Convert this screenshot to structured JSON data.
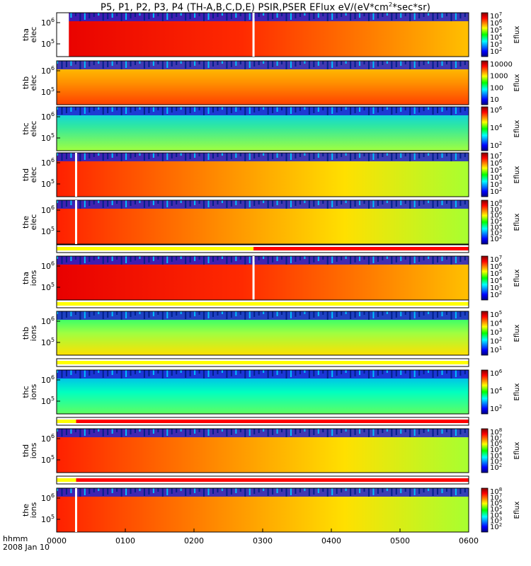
{
  "chart_data": {
    "type": "heatmap",
    "title": "P5, P1, P2, P3, P4 (TH-A,B,C,D,E) PSIR,PSER EFlux eV/(eV*cm",
    "title_sup": "2",
    "title_end": "*sec*sr)",
    "x_tick_labels": [
      "0000",
      "0100",
      "0200",
      "0300",
      "0400",
      "0500",
      "0600"
    ],
    "x_tick_values": [
      0,
      60,
      120,
      180,
      240,
      300,
      360
    ],
    "x_range_minutes": [
      0,
      360
    ],
    "x_axis_title": "hhmm",
    "date_label": "2008 Jan 10",
    "colorbar_label": "Eflux",
    "panels": [
      {
        "probe": "tha",
        "species": "elec",
        "y_ticks": [
          "10",
          "10"
        ],
        "y_exps": [
          "6",
          "5"
        ],
        "cb_ticks": [
          {
            "b": "10",
            "e": "7"
          },
          {
            "b": "10",
            "e": "6"
          },
          {
            "b": "10",
            "e": "5"
          },
          {
            "b": "10",
            "e": "4"
          },
          {
            "b": "10",
            "e": "3"
          },
          {
            "b": "10",
            "e": "2"
          }
        ],
        "gap_end_min": 2,
        "marker_min": 172
      },
      {
        "probe": "thb",
        "species": "elec",
        "y_ticks": [
          "10",
          "10"
        ],
        "y_exps": [
          "6",
          "5"
        ],
        "cb_ticks": [
          {
            "b": "10000",
            "e": ""
          },
          {
            "b": "1000",
            "e": ""
          },
          {
            "b": "100",
            "e": ""
          },
          {
            "b": "10",
            "e": ""
          }
        ],
        "gap_end_min": 0,
        "marker_min": null
      },
      {
        "probe": "thc",
        "species": "elec",
        "y_ticks": [
          "10",
          "10"
        ],
        "y_exps": [
          "6",
          "5"
        ],
        "cb_ticks": [
          {
            "b": "10",
            "e": "6"
          },
          {
            "b": "10",
            "e": "4"
          },
          {
            "b": "10",
            "e": "2"
          }
        ],
        "gap_end_min": 0,
        "marker_min": null
      },
      {
        "probe": "thd",
        "species": "elec",
        "y_ticks": [
          "10",
          "10"
        ],
        "y_exps": [
          "6",
          "5"
        ],
        "cb_ticks": [
          {
            "b": "10",
            "e": "7"
          },
          {
            "b": "10",
            "e": "6"
          },
          {
            "b": "10",
            "e": "5"
          },
          {
            "b": "10",
            "e": "4"
          },
          {
            "b": "10",
            "e": "3"
          },
          {
            "b": "10",
            "e": "2"
          }
        ],
        "gap_end_min": 0,
        "marker_min": 17
      },
      {
        "probe": "the",
        "species": "elec",
        "y_ticks": [
          "10",
          "10"
        ],
        "y_exps": [
          "6",
          "5"
        ],
        "cb_ticks": [
          {
            "b": "10",
            "e": "8"
          },
          {
            "b": "10",
            "e": "7"
          },
          {
            "b": "10",
            "e": "6"
          },
          {
            "b": "10",
            "e": "5"
          },
          {
            "b": "10",
            "e": "4"
          },
          {
            "b": "10",
            "e": "3"
          },
          {
            "b": "10",
            "e": "2"
          }
        ],
        "gap_end_min": 0,
        "marker_min": 17
      },
      {
        "probe": "tha",
        "species": "ions",
        "y_ticks": [
          "10",
          "10"
        ],
        "y_exps": [
          "6",
          "5"
        ],
        "cb_ticks": [
          {
            "b": "10",
            "e": "7"
          },
          {
            "b": "10",
            "e": "6"
          },
          {
            "b": "10",
            "e": "5"
          },
          {
            "b": "10",
            "e": "4"
          },
          {
            "b": "10",
            "e": "3"
          },
          {
            "b": "10",
            "e": "2"
          }
        ],
        "gap_end_min": 0,
        "marker_min": 172
      },
      {
        "probe": "thb",
        "species": "ions",
        "y_ticks": [
          "10",
          "10"
        ],
        "y_exps": [
          "6",
          "5"
        ],
        "cb_ticks": [
          {
            "b": "10",
            "e": "5"
          },
          {
            "b": "10",
            "e": "4"
          },
          {
            "b": "10",
            "e": "3"
          },
          {
            "b": "10",
            "e": "2"
          },
          {
            "b": "10",
            "e": "1"
          }
        ],
        "gap_end_min": 0,
        "marker_min": null
      },
      {
        "probe": "thc",
        "species": "ions",
        "y_ticks": [
          "10",
          "10"
        ],
        "y_exps": [
          "6",
          "5"
        ],
        "cb_ticks": [
          {
            "b": "10",
            "e": "6"
          },
          {
            "b": "10",
            "e": "4"
          },
          {
            "b": "10",
            "e": "2"
          }
        ],
        "gap_end_min": 0,
        "marker_min": null
      },
      {
        "probe": "thd",
        "species": "ions",
        "y_ticks": [
          "10",
          "10"
        ],
        "y_exps": [
          "6",
          "5"
        ],
        "cb_ticks": [
          {
            "b": "10",
            "e": "8"
          },
          {
            "b": "10",
            "e": "7"
          },
          {
            "b": "10",
            "e": "6"
          },
          {
            "b": "10",
            "e": "5"
          },
          {
            "b": "10",
            "e": "4"
          },
          {
            "b": "10",
            "e": "3"
          },
          {
            "b": "10",
            "e": "2"
          }
        ],
        "gap_end_min": 0,
        "marker_min": null
      },
      {
        "probe": "the",
        "species": "ions",
        "y_ticks": [
          "10",
          "10"
        ],
        "y_exps": [
          "6",
          "5"
        ],
        "cb_ticks": [
          {
            "b": "10",
            "e": "8"
          },
          {
            "b": "10",
            "e": "7"
          },
          {
            "b": "10",
            "e": "6"
          },
          {
            "b": "10",
            "e": "5"
          },
          {
            "b": "10",
            "e": "4"
          },
          {
            "b": "10",
            "e": "3"
          },
          {
            "b": "10",
            "e": "2"
          }
        ],
        "gap_end_min": 0,
        "marker_min": 17
      }
    ],
    "mode_bars": [
      {
        "segments": [
          {
            "start_min": 0,
            "end_min": 172,
            "color": "#ffff00"
          },
          {
            "start_min": 172,
            "end_min": 360,
            "color": "#ff0000"
          }
        ]
      },
      {
        "segments": [
          {
            "start_min": 0,
            "end_min": 360,
            "color": "#ffff00"
          }
        ]
      },
      {
        "segments": [
          {
            "start_min": 0,
            "end_min": 360,
            "color": "#ffff00"
          }
        ]
      },
      {
        "segments": [
          {
            "start_min": 0,
            "end_min": 17,
            "color": "#ffff00"
          },
          {
            "start_min": 17,
            "end_min": 360,
            "color": "#ff0000"
          }
        ]
      },
      {
        "segments": [
          {
            "start_min": 0,
            "end_min": 17,
            "color": "#ffff00"
          },
          {
            "start_min": 17,
            "end_min": 360,
            "color": "#ff0000"
          }
        ]
      }
    ]
  }
}
